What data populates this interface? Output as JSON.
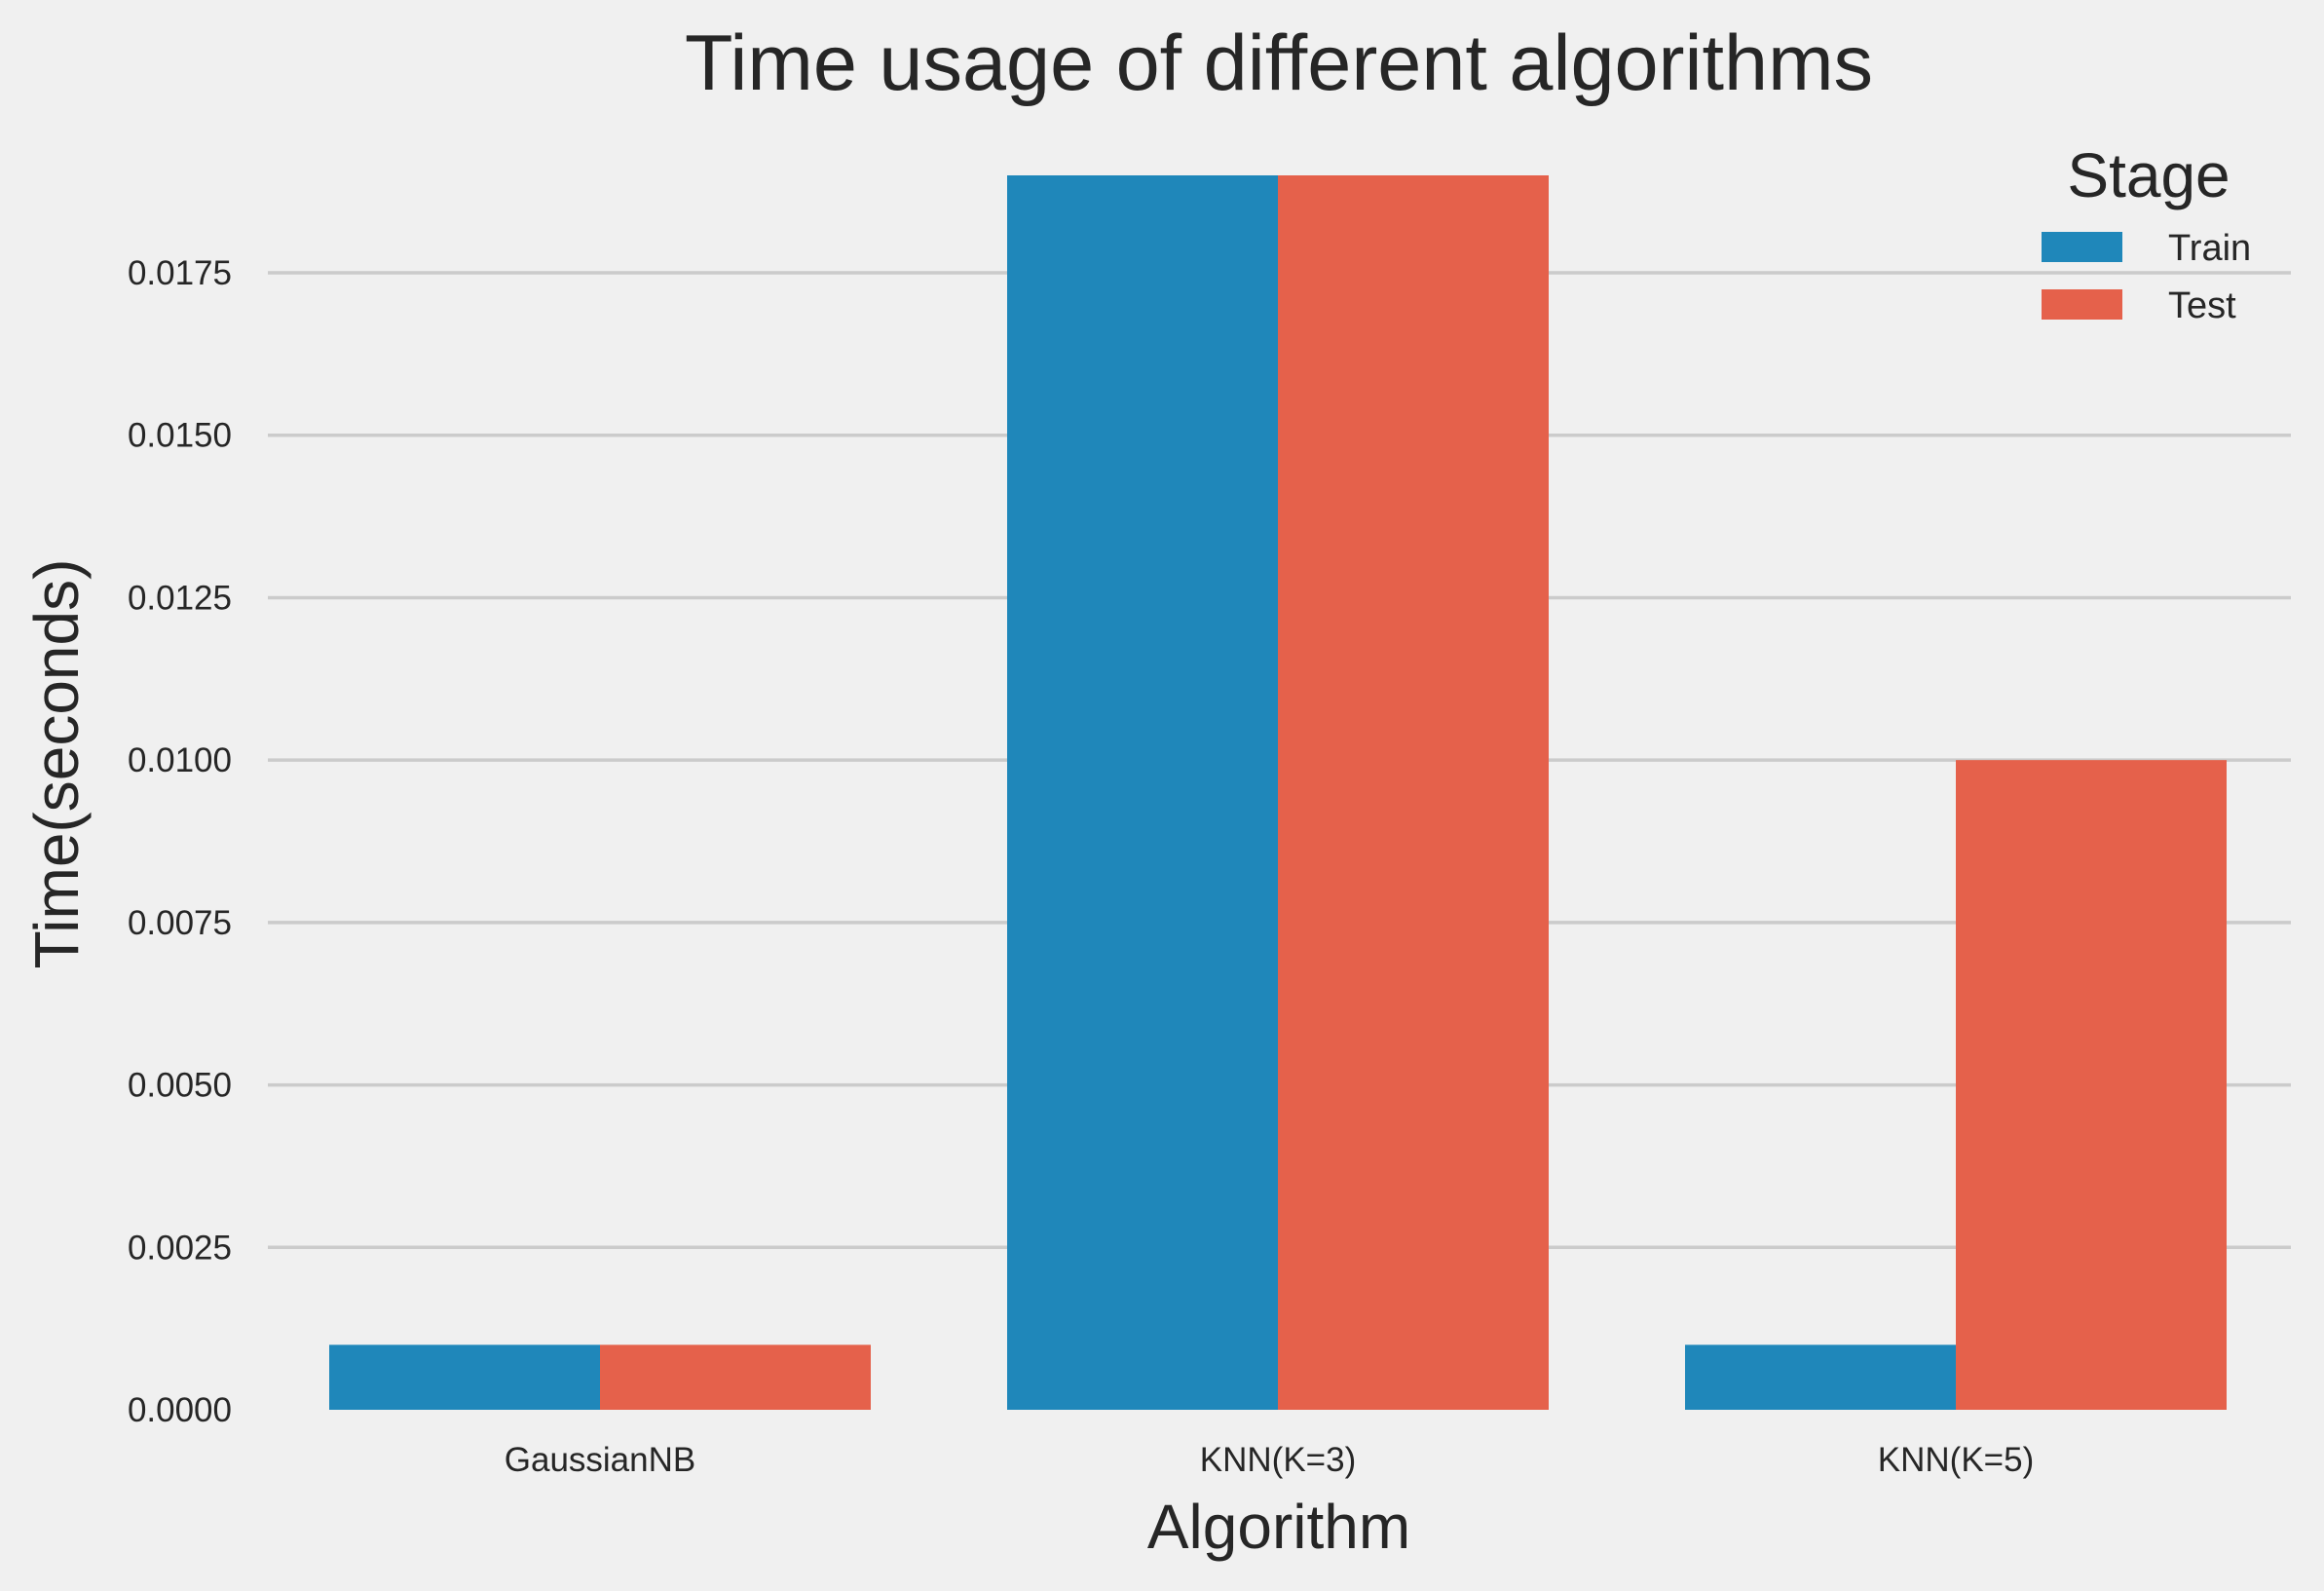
{
  "chart_data": {
    "type": "bar",
    "title": "Time usage of different algorithms",
    "xlabel": "Algorithm",
    "ylabel": "Time(seconds)",
    "categories": [
      "GaussianNB",
      "KNN(K=3)",
      "KNN(K=5)"
    ],
    "series": [
      {
        "name": "Train",
        "values": [
          0.001,
          0.019,
          0.001
        ],
        "color": "#1f87ba"
      },
      {
        "name": "Test",
        "values": [
          0.001,
          0.019,
          0.01
        ],
        "color": "#e5614b"
      }
    ],
    "ylim": [
      0,
      0.019
    ],
    "yticks": [
      "0.0000",
      "0.0025",
      "0.0050",
      "0.0075",
      "0.0100",
      "0.0125",
      "0.0150",
      "0.0175"
    ],
    "ytick_values": [
      0,
      0.0025,
      0.005,
      0.0075,
      0.01,
      0.0125,
      0.015,
      0.0175
    ],
    "grid": true,
    "legend": {
      "title": "Stage",
      "position": "top-right"
    }
  }
}
